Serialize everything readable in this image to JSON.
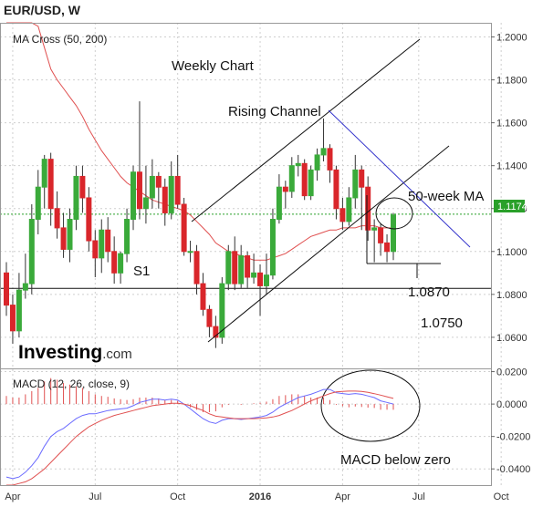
{
  "header": {
    "pair_title": "EUR/USD, W"
  },
  "brand": {
    "name": "Investing",
    "suffix": ".com"
  },
  "colors": {
    "up": "#3aaa3a",
    "down": "#d9262b",
    "ma50": "#e05050",
    "ma200": "#4a4ad8",
    "resistance": "#3333cc",
    "macd_line": "#6a6aff",
    "signal_line": "#e05050",
    "hist": "#e05050",
    "current_price": "#2aa02a",
    "grid": "#cfcfcf",
    "axis_text": "#333333"
  },
  "chart_data": [
    {
      "type": "candlestick",
      "panel": "price",
      "indicator_label": "MA Cross (50, 200)",
      "title": "Weekly Chart",
      "ylim": [
        1.0455,
        1.2066
      ],
      "y_ticks": [
        "1.2000",
        "1.1800",
        "1.1600",
        "1.1400",
        "1.1200",
        "1.1000",
        "1.0800",
        "1.0600"
      ],
      "current_price": "1.1174",
      "current_price_value": 1.1174,
      "annotations": {
        "rising_channel": "Rising Channel",
        "ma_label": "50-week MA",
        "support_label": "S1",
        "support_level": 1.0828,
        "target_1": "1.0870",
        "target_2": "1.0750"
      },
      "candles": [
        [
          1.09,
          1.075,
          1.095,
          1.07
        ],
        [
          1.075,
          1.063,
          1.08,
          1.057
        ],
        [
          1.063,
          1.082,
          1.09,
          1.06
        ],
        [
          1.082,
          1.085,
          1.099,
          1.078
        ],
        [
          1.085,
          1.115,
          1.122,
          1.08
        ],
        [
          1.115,
          1.13,
          1.138,
          1.108
        ],
        [
          1.13,
          1.143,
          1.145,
          1.12
        ],
        [
          1.143,
          1.12,
          1.146,
          1.112
        ],
        [
          1.12,
          1.111,
          1.128,
          1.106
        ],
        [
          1.111,
          1.101,
          1.118,
          1.097
        ],
        [
          1.101,
          1.115,
          1.12,
          1.095
        ],
        [
          1.115,
          1.135,
          1.14,
          1.11
        ],
        [
          1.135,
          1.125,
          1.14,
          1.118
        ],
        [
          1.125,
          1.105,
          1.13,
          1.1
        ],
        [
          1.105,
          1.097,
          1.11,
          1.088
        ],
        [
          1.097,
          1.11,
          1.115,
          1.09
        ],
        [
          1.11,
          1.1,
          1.116,
          1.095
        ],
        [
          1.1,
          1.09,
          1.107,
          1.085
        ],
        [
          1.09,
          1.099,
          1.1,
          1.085
        ],
        [
          1.099,
          1.115,
          1.12,
          1.095
        ],
        [
          1.115,
          1.137,
          1.14,
          1.11
        ],
        [
          1.137,
          1.12,
          1.17,
          1.115
        ],
        [
          1.12,
          1.125,
          1.14,
          1.113
        ],
        [
          1.125,
          1.135,
          1.143,
          1.12
        ],
        [
          1.135,
          1.13,
          1.137,
          1.12
        ],
        [
          1.13,
          1.118,
          1.134,
          1.112
        ],
        [
          1.118,
          1.135,
          1.142,
          1.115
        ],
        [
          1.135,
          1.122,
          1.145,
          1.12
        ],
        [
          1.122,
          1.1,
          1.125,
          1.098
        ],
        [
          1.1,
          1.1,
          1.105,
          1.095
        ],
        [
          1.1,
          1.085,
          1.103,
          1.08
        ],
        [
          1.085,
          1.073,
          1.09,
          1.07
        ],
        [
          1.073,
          1.065,
          1.075,
          1.06
        ],
        [
          1.065,
          1.06,
          1.07,
          1.055
        ],
        [
          1.06,
          1.085,
          1.088,
          1.057
        ],
        [
          1.085,
          1.1,
          1.103,
          1.082
        ],
        [
          1.1,
          1.085,
          1.107,
          1.082
        ],
        [
          1.085,
          1.098,
          1.103,
          1.083
        ],
        [
          1.098,
          1.088,
          1.1,
          1.083
        ],
        [
          1.088,
          1.09,
          1.099,
          1.085
        ],
        [
          1.09,
          1.084,
          1.094,
          1.07
        ],
        [
          1.084,
          1.089,
          1.099,
          1.08
        ],
        [
          1.089,
          1.115,
          1.12,
          1.087
        ],
        [
          1.115,
          1.13,
          1.136,
          1.113
        ],
        [
          1.13,
          1.128,
          1.133,
          1.12
        ],
        [
          1.128,
          1.14,
          1.144,
          1.125
        ],
        [
          1.14,
          1.141,
          1.145,
          1.135
        ],
        [
          1.141,
          1.126,
          1.143,
          1.124
        ],
        [
          1.126,
          1.138,
          1.14,
          1.124
        ],
        [
          1.138,
          1.145,
          1.148,
          1.133
        ],
        [
          1.145,
          1.148,
          1.162,
          1.142
        ],
        [
          1.148,
          1.138,
          1.15,
          1.132
        ],
        [
          1.138,
          1.12,
          1.14,
          1.115
        ],
        [
          1.12,
          1.114,
          1.125,
          1.11
        ],
        [
          1.114,
          1.125,
          1.13,
          1.112
        ],
        [
          1.125,
          1.138,
          1.145,
          1.12
        ],
        [
          1.138,
          1.13,
          1.14,
          1.11
        ],
        [
          1.13,
          1.11,
          1.135,
          1.105
        ],
        [
          1.11,
          1.111,
          1.115,
          1.095
        ],
        [
          1.111,
          1.104,
          1.113,
          1.098
        ],
        [
          1.104,
          1.1,
          1.108,
          1.095
        ],
        [
          1.1,
          1.117,
          1.118,
          1.096
        ]
      ],
      "ma_series": [
        {
          "name": "50-week MA",
          "role": "ma50",
          "values": [
            1.24,
            1.235,
            1.225,
            1.218,
            1.212,
            1.205,
            1.195,
            1.185,
            1.18,
            1.176,
            1.172,
            1.168,
            1.163,
            1.157,
            1.152,
            1.147,
            1.143,
            1.139,
            1.135,
            1.132,
            1.13,
            1.128,
            1.126,
            1.124,
            1.123,
            1.122,
            1.121,
            1.12,
            1.119,
            1.117,
            1.114,
            1.111,
            1.108,
            1.104,
            1.102,
            1.1,
            1.099,
            1.098,
            1.097,
            1.096,
            1.096,
            1.096,
            1.097,
            1.098,
            1.099,
            1.101,
            1.103,
            1.105,
            1.107,
            1.108,
            1.109,
            1.11,
            1.11,
            1.111,
            1.111,
            1.111,
            1.112,
            1.112,
            1.112,
            1.111,
            1.111,
            1.111
          ]
        }
      ]
    },
    {
      "type": "line",
      "panel": "macd",
      "indicator_label": "MACD (12, 26, close, 9)",
      "annotation": "MACD below zero",
      "ylim": [
        -0.05,
        0.022
      ],
      "y_ticks": [
        "0.0200",
        "0.0000",
        "-0.0200",
        "-0.0400"
      ],
      "x_ticks": [
        "Apr",
        "Jul",
        "Oct",
        "2016",
        "Apr",
        "Jul",
        "Oct"
      ],
      "series": [
        {
          "role": "macd",
          "values": [
            -0.045,
            -0.046,
            -0.045,
            -0.042,
            -0.038,
            -0.033,
            -0.026,
            -0.02,
            -0.017,
            -0.015,
            -0.012,
            -0.009,
            -0.007,
            -0.006,
            -0.006,
            -0.005,
            -0.004,
            -0.0035,
            -0.003,
            -0.0025,
            -0.001,
            0.001,
            0.002,
            0.003,
            0.003,
            0.0025,
            0.003,
            0.0025,
            0.0,
            -0.003,
            -0.006,
            -0.009,
            -0.011,
            -0.012,
            -0.01,
            -0.009,
            -0.009,
            -0.0095,
            -0.009,
            -0.0085,
            -0.008,
            -0.007,
            -0.005,
            -0.002,
            0.0,
            0.002,
            0.004,
            0.005,
            0.006,
            0.0075,
            0.009,
            0.009,
            0.007,
            0.0065,
            0.006,
            0.0065,
            0.006,
            0.005,
            0.004,
            0.002,
            0.001,
            0.0
          ]
        },
        {
          "role": "signal",
          "values": [
            -0.05,
            -0.05,
            -0.049,
            -0.048,
            -0.046,
            -0.043,
            -0.04,
            -0.036,
            -0.032,
            -0.028,
            -0.024,
            -0.02,
            -0.017,
            -0.014,
            -0.012,
            -0.01,
            -0.0085,
            -0.007,
            -0.006,
            -0.005,
            -0.004,
            -0.003,
            -0.002,
            -0.001,
            -0.0005,
            0.0,
            0.0005,
            0.0005,
            0.0,
            -0.001,
            -0.0025,
            -0.004,
            -0.006,
            -0.0075,
            -0.008,
            -0.0085,
            -0.009,
            -0.009,
            -0.009,
            -0.009,
            -0.0088,
            -0.0085,
            -0.008,
            -0.007,
            -0.0055,
            -0.004,
            -0.002,
            0.0,
            0.002,
            0.0035,
            0.005,
            0.0065,
            0.0075,
            0.0078,
            0.008,
            0.008,
            0.0078,
            0.0072,
            0.0064,
            0.0055,
            0.0045,
            0.0035
          ]
        }
      ]
    }
  ]
}
